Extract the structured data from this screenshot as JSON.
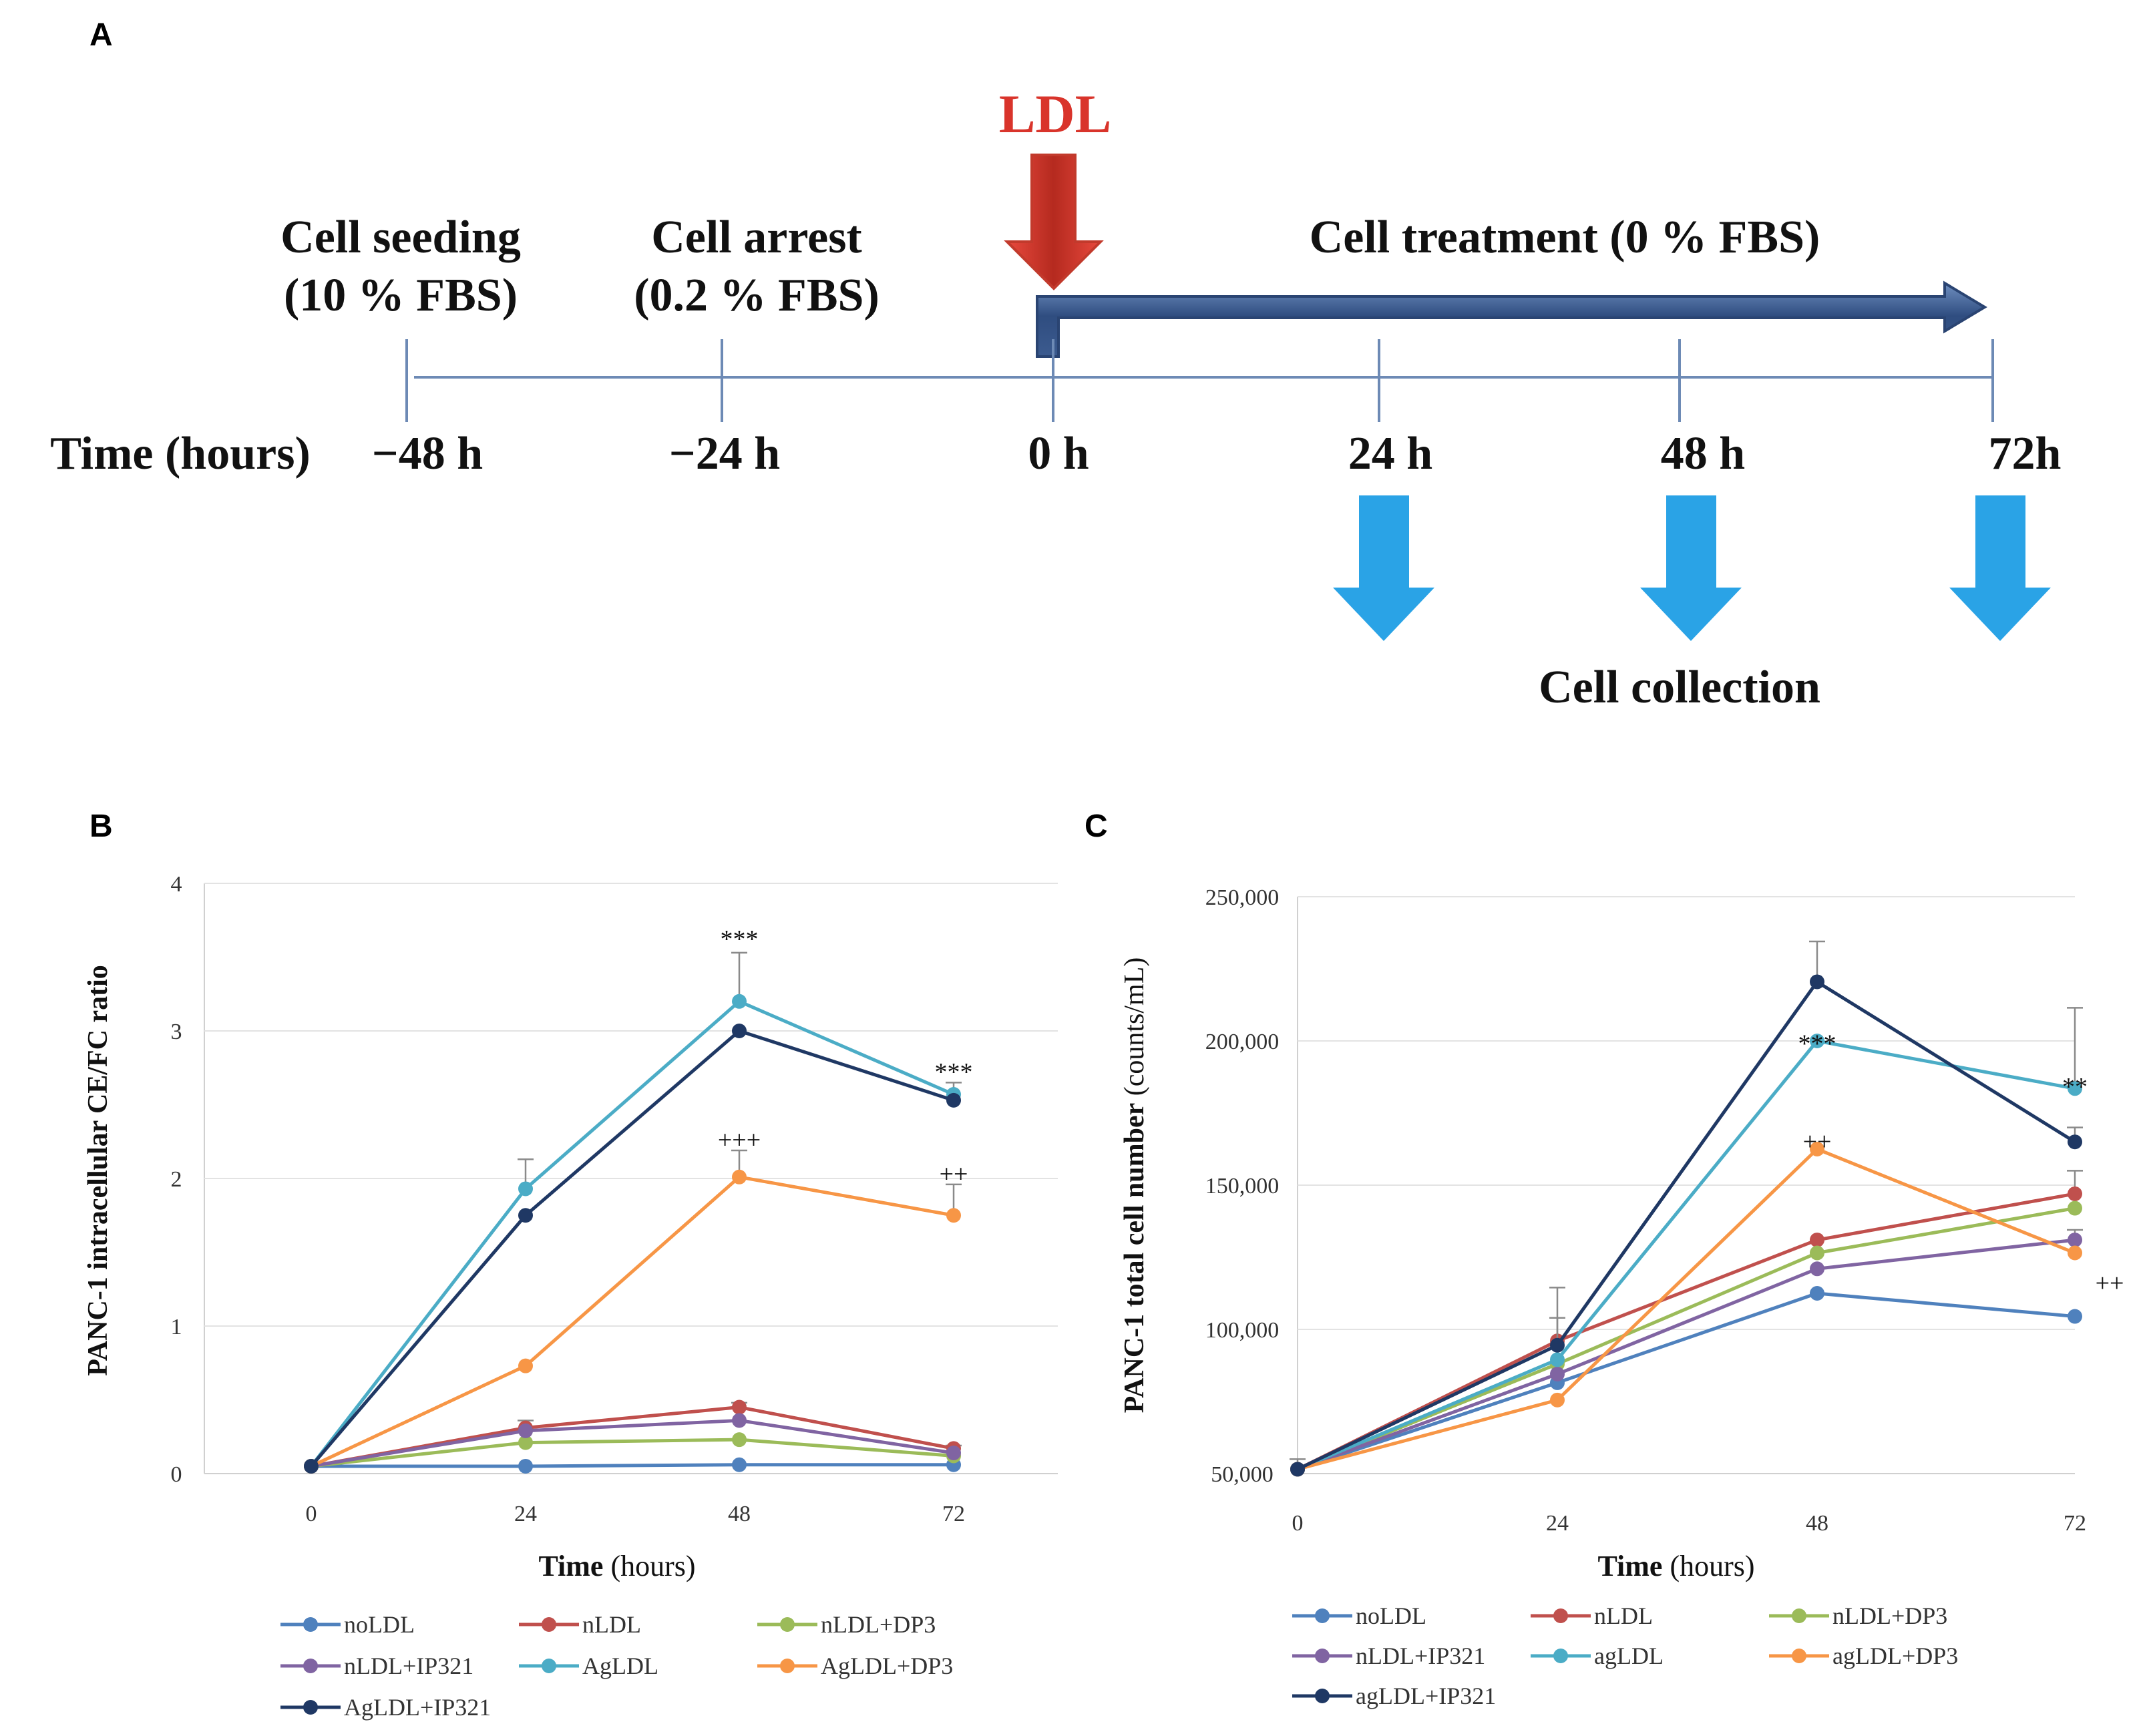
{
  "panel_a": {
    "label": "A",
    "ldl_label": "LDL",
    "stage_seeding": [
      "Cell seeding",
      "(10 % FBS)"
    ],
    "stage_arrest": [
      "Cell arrest",
      "(0.2 % FBS)"
    ],
    "stage_treatment": "Cell treatment (0 % FBS)",
    "time_label": "Time (hours)",
    "ticks": [
      "−48 h",
      "−24 h",
      "0 h",
      "24 h",
      "48 h",
      "72h"
    ],
    "collection_label": "Cell collection",
    "colors": {
      "ldl": "#d9342b",
      "timeline": "#3b5a88",
      "collection": "#2aa3e6"
    }
  },
  "chart_data": [
    {
      "type": "line",
      "panel": "B",
      "title": "",
      "xlabel_bold": "Time",
      "xlabel_rest": " (hours)",
      "ylabel": "PANC-1 intracellular CE/FC ratio",
      "x": [
        0,
        24,
        48,
        72
      ],
      "xticks": [
        "0",
        "24",
        "48",
        "72"
      ],
      "yticks": [
        "0",
        "1",
        "2",
        "3",
        "4"
      ],
      "ylim": [
        0,
        4
      ],
      "grid": "horizontal",
      "series": [
        {
          "name": "noLDL",
          "color": "#4f81bd",
          "values": [
            0.05,
            0.05,
            0.06,
            0.06
          ],
          "errors": [
            0,
            0,
            0,
            0
          ]
        },
        {
          "name": "nLDL",
          "color": "#c0504d",
          "values": [
            0.05,
            0.31,
            0.45,
            0.17
          ],
          "errors": [
            0,
            0.05,
            0.03,
            0.02
          ]
        },
        {
          "name": "nLDL+DP3",
          "color": "#9bbb59",
          "values": [
            0.05,
            0.21,
            0.23,
            0.12
          ],
          "errors": [
            0,
            0,
            0,
            0
          ]
        },
        {
          "name": "nLDL+IP321",
          "color": "#8064a2",
          "values": [
            0.05,
            0.29,
            0.36,
            0.14
          ],
          "errors": [
            0,
            0,
            0,
            0
          ]
        },
        {
          "name": "AgLDL",
          "color": "#4bacc6",
          "values": [
            0.05,
            1.93,
            3.2,
            2.57
          ],
          "errors": [
            0,
            0.2,
            0.33,
            0.08
          ]
        },
        {
          "name": "AgLDL+DP3",
          "color": "#f79646",
          "values": [
            0.05,
            0.73,
            2.01,
            1.75
          ],
          "errors": [
            0,
            0,
            0.18,
            0.21
          ]
        },
        {
          "name": "AgLDL+IP321",
          "color": "#1f3864",
          "values": [
            0.05,
            1.75,
            3.0,
            2.53
          ],
          "errors": [
            0,
            0,
            0,
            0
          ]
        }
      ],
      "annotations": [
        {
          "text": "***",
          "x": 48,
          "y": 3.62
        },
        {
          "text": "***",
          "x": 72,
          "y": 2.72
        },
        {
          "text": "+++",
          "x": 48,
          "y": 2.26
        },
        {
          "text": "++",
          "x": 72,
          "y": 2.03
        }
      ],
      "legend_position": "bottom"
    },
    {
      "type": "line",
      "panel": "C",
      "title": "",
      "xlabel_bold": "Time",
      "xlabel_rest": " (hours)",
      "ylabel_bold": "PANC-1 total cell number",
      "ylabel_rest": " (counts/mL)",
      "x": [
        0,
        24,
        48,
        72
      ],
      "xticks": [
        "0",
        "24",
        "48",
        "72"
      ],
      "yticks": [
        "50,000",
        "100,000",
        "150,000",
        "200,000",
        "250,000"
      ],
      "ylim": [
        50000,
        250000
      ],
      "grid": "horizontal",
      "series": [
        {
          "name": "noLDL",
          "color": "#4f81bd",
          "values": [
            51500,
            81500,
            112500,
            104500
          ],
          "errors": [
            3500,
            0,
            0,
            0
          ]
        },
        {
          "name": "nLDL",
          "color": "#c0504d",
          "values": [
            51500,
            96000,
            131000,
            147000
          ],
          "errors": [
            0,
            8000,
            0,
            8000
          ]
        },
        {
          "name": "nLDL+DP3",
          "color": "#9bbb59",
          "values": [
            51500,
            88000,
            126500,
            142000
          ],
          "errors": [
            0,
            0,
            0,
            0
          ]
        },
        {
          "name": "nLDL+IP321",
          "color": "#8064a2",
          "values": [
            51500,
            84500,
            121000,
            131000
          ],
          "errors": [
            0,
            0,
            0,
            3500
          ]
        },
        {
          "name": "agLDL",
          "color": "#4bacc6",
          "values": [
            51500,
            89500,
            200000,
            183500
          ],
          "errors": [
            0,
            0,
            0,
            28000
          ]
        },
        {
          "name": "agLDL+DP3",
          "color": "#f79646",
          "values": [
            51500,
            75500,
            162500,
            126500
          ],
          "errors": [
            0,
            0,
            0,
            0
          ]
        },
        {
          "name": "agLDL+IP321",
          "color": "#1f3864",
          "values": [
            51500,
            94500,
            220500,
            165000
          ],
          "errors": [
            0,
            20000,
            14000,
            5000
          ]
        }
      ],
      "annotations": [
        {
          "text": "***",
          "x": 48,
          "y": 199000
        },
        {
          "text": "**",
          "x": 72,
          "y": 184000
        },
        {
          "text": "++",
          "x": 48,
          "y": 165000
        },
        {
          "text": "++",
          "x": 72,
          "y": 116000
        }
      ],
      "legend_position": "bottom"
    }
  ]
}
